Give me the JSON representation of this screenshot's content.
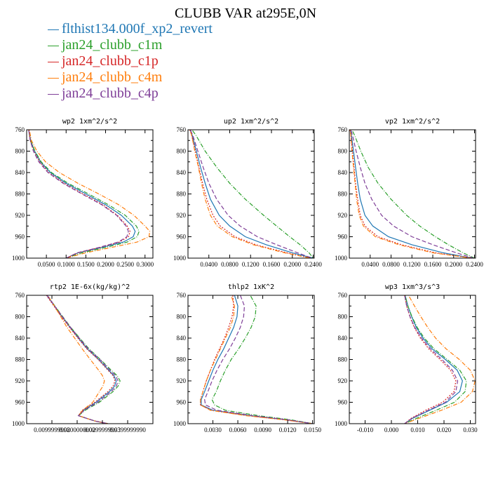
{
  "figure_title": "CLUBB VAR at295E,0N",
  "legend": [
    {
      "label": "flthist134.000f_xp2_revert",
      "color": "#1f77b4"
    },
    {
      "label": "jan24_clubb_c1m",
      "color": "#2ca02c"
    },
    {
      "label": "jan24_clubb_c1p",
      "color": "#d62728"
    },
    {
      "label": "jan24_clubb_c4m",
      "color": "#ff7f0e"
    },
    {
      "label": "jan24_clubb_c4p",
      "color": "#7f3f98"
    }
  ],
  "chart_data": [
    {
      "type": "line",
      "title": "wp2   1xm^2/s^2",
      "xlim": [
        0,
        0.32
      ],
      "ylim": [
        760,
        1000
      ],
      "y_reversed": true,
      "xticks": [
        0.05,
        0.1,
        0.15,
        0.2,
        0.25,
        0.3
      ],
      "xtick_labels": [
        "0.0500",
        "0.1000",
        "0.1500",
        "0.2000",
        "0.2500",
        "0.3000"
      ],
      "yticks": [
        760,
        800,
        840,
        880,
        920,
        960,
        1000
      ],
      "y": [
        750,
        780,
        800,
        820,
        840,
        860,
        880,
        900,
        920,
        940,
        950,
        960,
        970,
        980,
        990,
        1000
      ],
      "series": [
        {
          "name": "flthist134.000f_xp2_revert",
          "color": "#1f77b4",
          "dash": "",
          "values": [
            0.003,
            0.01,
            0.02,
            0.035,
            0.06,
            0.1,
            0.15,
            0.2,
            0.24,
            0.268,
            0.275,
            0.27,
            0.245,
            0.19,
            0.13,
            0.1
          ]
        },
        {
          "name": "jan24_clubb_c1m",
          "color": "#2ca02c",
          "dash": "6,2,1,2",
          "values": [
            0.003,
            0.01,
            0.021,
            0.037,
            0.063,
            0.105,
            0.157,
            0.207,
            0.25,
            0.278,
            0.285,
            0.28,
            0.255,
            0.2,
            0.14,
            0.1
          ]
        },
        {
          "name": "jan24_clubb_c1p",
          "color": "#d62728",
          "dash": "2,2",
          "values": [
            0.003,
            0.009,
            0.018,
            0.033,
            0.056,
            0.095,
            0.143,
            0.193,
            0.23,
            0.255,
            0.262,
            0.258,
            0.235,
            0.185,
            0.13,
            0.1
          ]
        },
        {
          "name": "jan24_clubb_c4m",
          "color": "#ff7f0e",
          "dash": "6,2,1,2",
          "values": [
            0.004,
            0.012,
            0.026,
            0.048,
            0.083,
            0.13,
            0.183,
            0.233,
            0.272,
            0.3,
            0.312,
            0.31,
            0.28,
            0.215,
            0.15,
            0.1
          ]
        },
        {
          "name": "jan24_clubb_c4p",
          "color": "#7f3f98",
          "dash": "6,3",
          "values": [
            0.003,
            0.009,
            0.017,
            0.031,
            0.054,
            0.092,
            0.14,
            0.19,
            0.228,
            0.252,
            0.258,
            0.254,
            0.232,
            0.183,
            0.128,
            0.1
          ]
        }
      ]
    },
    {
      "type": "line",
      "title": "up2   1xm^2/s^2",
      "xlim": [
        0,
        0.242
      ],
      "ylim": [
        760,
        1000
      ],
      "y_reversed": true,
      "xticks": [
        0.04,
        0.08,
        0.12,
        0.16,
        0.2,
        0.24
      ],
      "xtick_labels": [
        "0.0400",
        "0.0800",
        "0.1200",
        "0.1600",
        "0.2000",
        "0.2400"
      ],
      "yticks": [
        760,
        800,
        840,
        880,
        920,
        960,
        1000
      ],
      "y": [
        750,
        770,
        800,
        830,
        860,
        890,
        920,
        940,
        960,
        975,
        990,
        1000
      ],
      "series": [
        {
          "name": "flthist134.000f_xp2_revert",
          "color": "#1f77b4",
          "dash": "",
          "values": [
            0.0,
            0.008,
            0.016,
            0.024,
            0.033,
            0.043,
            0.06,
            0.08,
            0.11,
            0.15,
            0.2,
            0.24
          ]
        },
        {
          "name": "jan24_clubb_c1m",
          "color": "#2ca02c",
          "dash": "6,2,1,2",
          "values": [
            0.0,
            0.015,
            0.033,
            0.055,
            0.08,
            0.11,
            0.145,
            0.17,
            0.195,
            0.215,
            0.232,
            0.24
          ]
        },
        {
          "name": "jan24_clubb_c1p",
          "color": "#d62728",
          "dash": "2,2",
          "values": [
            0.0,
            0.007,
            0.014,
            0.021,
            0.028,
            0.036,
            0.048,
            0.062,
            0.09,
            0.13,
            0.19,
            0.235
          ]
        },
        {
          "name": "jan24_clubb_c4m",
          "color": "#ff7f0e",
          "dash": "6,2,1,2",
          "values": [
            0.0,
            0.007,
            0.013,
            0.02,
            0.026,
            0.033,
            0.043,
            0.056,
            0.085,
            0.125,
            0.185,
            0.235
          ]
        },
        {
          "name": "jan24_clubb_c4p",
          "color": "#7f3f98",
          "dash": "6,3",
          "values": [
            0.0,
            0.009,
            0.019,
            0.029,
            0.04,
            0.055,
            0.077,
            0.1,
            0.133,
            0.17,
            0.21,
            0.238
          ]
        }
      ]
    },
    {
      "type": "line",
      "title": "vp2   1xm^2/s^2",
      "xlim": [
        0,
        0.242
      ],
      "ylim": [
        760,
        1000
      ],
      "y_reversed": true,
      "xticks": [
        0.04,
        0.08,
        0.12,
        0.16,
        0.2,
        0.24
      ],
      "xtick_labels": [
        "0.0400",
        "0.0800",
        "0.1200",
        "0.1600",
        "0.2000",
        "0.2400"
      ],
      "yticks": [
        760,
        800,
        840,
        880,
        920,
        960,
        1000
      ],
      "y": [
        750,
        770,
        800,
        830,
        860,
        890,
        920,
        940,
        960,
        975,
        990,
        1000
      ],
      "series": [
        {
          "name": "flthist134.000f_xp2_revert",
          "color": "#1f77b4",
          "dash": "",
          "values": [
            0.0,
            0.004,
            0.008,
            0.012,
            0.016,
            0.021,
            0.03,
            0.045,
            0.075,
            0.12,
            0.18,
            0.235
          ]
        },
        {
          "name": "jan24_clubb_c1m",
          "color": "#2ca02c",
          "dash": "6,2,1,2",
          "values": [
            0.0,
            0.01,
            0.022,
            0.036,
            0.055,
            0.08,
            0.11,
            0.135,
            0.165,
            0.19,
            0.218,
            0.24
          ]
        },
        {
          "name": "jan24_clubb_c1p",
          "color": "#d62728",
          "dash": "2,2",
          "values": [
            0.0,
            0.003,
            0.006,
            0.009,
            0.012,
            0.016,
            0.021,
            0.03,
            0.055,
            0.1,
            0.165,
            0.235
          ]
        },
        {
          "name": "jan24_clubb_c4m",
          "color": "#ff7f0e",
          "dash": "6,2,1,2",
          "values": [
            0.0,
            0.003,
            0.005,
            0.008,
            0.011,
            0.014,
            0.019,
            0.027,
            0.05,
            0.095,
            0.16,
            0.235
          ]
        },
        {
          "name": "jan24_clubb_c4p",
          "color": "#7f3f98",
          "dash": "6,3",
          "values": [
            0.0,
            0.006,
            0.013,
            0.021,
            0.03,
            0.043,
            0.062,
            0.085,
            0.12,
            0.16,
            0.205,
            0.238
          ]
        }
      ]
    },
    {
      "type": "line",
      "title": "rtp2   1E-6x(kg/kg)^2",
      "xlim": [
        0.0,
        0.05
      ],
      "ylim": [
        760,
        1000
      ],
      "y_reversed": true,
      "xticks": [
        0.01,
        0.02,
        0.03,
        0.04
      ],
      "xtick_labels": [
        "0.0099999998",
        "0.0200000000",
        "0.0299999993",
        "0.0399999990"
      ],
      "yticks": [
        760,
        800,
        840,
        880,
        920,
        960,
        1000
      ],
      "y": [
        750,
        760,
        780,
        800,
        820,
        840,
        860,
        880,
        900,
        910,
        920,
        930,
        940,
        960,
        975,
        985,
        995,
        1000
      ],
      "series": [
        {
          "name": "flthist134.000f_xp2_revert",
          "color": "#1f77b4",
          "dash": "",
          "values": [
            0.0068,
            0.008,
            0.011,
            0.014,
            0.0172,
            0.0205,
            0.024,
            0.0285,
            0.0325,
            0.0345,
            0.0355,
            0.0348,
            0.0328,
            0.0275,
            0.0225,
            0.0205,
            0.027,
            0.0322
          ]
        },
        {
          "name": "jan24_clubb_c1m",
          "color": "#2ca02c",
          "dash": "6,2,1,2",
          "values": [
            0.007,
            0.0082,
            0.0112,
            0.0143,
            0.0175,
            0.021,
            0.0247,
            0.0292,
            0.0335,
            0.0358,
            0.037,
            0.0362,
            0.0342,
            0.0288,
            0.0232,
            0.0205,
            0.027,
            0.0322
          ]
        },
        {
          "name": "jan24_clubb_c1p",
          "color": "#d62728",
          "dash": "2,2",
          "values": [
            0.0066,
            0.0078,
            0.0108,
            0.0138,
            0.017,
            0.0203,
            0.0238,
            0.0283,
            0.0322,
            0.0342,
            0.035,
            0.0342,
            0.0322,
            0.027,
            0.022,
            0.0205,
            0.027,
            0.0322
          ]
        },
        {
          "name": "jan24_clubb_c4m",
          "color": "#ff7f0e",
          "dash": "6,2,1,2",
          "values": [
            0.0071,
            0.0083,
            0.011,
            0.0135,
            0.016,
            0.019,
            0.022,
            0.0252,
            0.0285,
            0.03,
            0.0308,
            0.0302,
            0.0288,
            0.0262,
            0.0222,
            0.0205,
            0.027,
            0.0322
          ]
        },
        {
          "name": "jan24_clubb_c4p",
          "color": "#7f3f98",
          "dash": "6,3",
          "values": [
            0.0069,
            0.0081,
            0.0111,
            0.0142,
            0.0174,
            0.0208,
            0.0244,
            0.029,
            0.033,
            0.0352,
            0.0362,
            0.0355,
            0.0335,
            0.0282,
            0.0228,
            0.0205,
            0.027,
            0.0322
          ]
        }
      ]
    },
    {
      "type": "line",
      "title": "thlp2   1xK^2",
      "xlim": [
        0.0,
        0.0152
      ],
      "ylim": [
        760,
        1000
      ],
      "y_reversed": true,
      "xticks": [
        0.003,
        0.006,
        0.009,
        0.012,
        0.015
      ],
      "xtick_labels": [
        "0.0030",
        "0.0060",
        "0.0090",
        "0.0120",
        "0.0150"
      ],
      "yticks": [
        760,
        800,
        840,
        880,
        920,
        960,
        1000
      ],
      "y": [
        750,
        760,
        780,
        800,
        820,
        840,
        860,
        880,
        900,
        920,
        940,
        955,
        965,
        975,
        985,
        993,
        1000
      ],
      "series": [
        {
          "name": "flthist134.000f_xp2_revert",
          "color": "#1f77b4",
          "dash": "",
          "values": [
            0.0053,
            0.0056,
            0.006,
            0.0059,
            0.0055,
            0.0049,
            0.0043,
            0.0036,
            0.003,
            0.0025,
            0.002,
            0.0016,
            0.0016,
            0.003,
            0.0075,
            0.012,
            0.015
          ]
        },
        {
          "name": "jan24_clubb_c1m",
          "color": "#2ca02c",
          "dash": "6,2,1,2",
          "values": [
            0.007,
            0.0075,
            0.0082,
            0.0081,
            0.0076,
            0.0069,
            0.0061,
            0.0052,
            0.0045,
            0.0039,
            0.0034,
            0.0029,
            0.0032,
            0.0045,
            0.0085,
            0.0125,
            0.015
          ]
        },
        {
          "name": "jan24_clubb_c1p",
          "color": "#d62728",
          "dash": "2,2",
          "values": [
            0.0052,
            0.0054,
            0.0055,
            0.0053,
            0.0049,
            0.0044,
            0.0038,
            0.0032,
            0.0027,
            0.0022,
            0.0018,
            0.0015,
            0.0015,
            0.0028,
            0.0072,
            0.0118,
            0.015
          ]
        },
        {
          "name": "jan24_clubb_c4m",
          "color": "#ff7f0e",
          "dash": "6,2,1,2",
          "values": [
            0.0049,
            0.0052,
            0.0056,
            0.0055,
            0.0051,
            0.0045,
            0.0039,
            0.0033,
            0.0027,
            0.0022,
            0.0018,
            0.0015,
            0.0015,
            0.0027,
            0.007,
            0.0117,
            0.015
          ]
        },
        {
          "name": "jan24_clubb_c4p",
          "color": "#7f3f98",
          "dash": "6,3",
          "values": [
            0.0059,
            0.0063,
            0.0068,
            0.0067,
            0.0063,
            0.0057,
            0.005,
            0.0042,
            0.0035,
            0.0029,
            0.0024,
            0.002,
            0.0021,
            0.0035,
            0.0078,
            0.0122,
            0.015
          ]
        }
      ]
    },
    {
      "type": "line",
      "title": "wp3   1xm^3/s^3",
      "xlim": [
        -0.016,
        0.032
      ],
      "ylim": [
        760,
        1000
      ],
      "y_reversed": true,
      "xticks": [
        -0.01,
        0.0,
        0.01,
        0.02,
        0.03
      ],
      "xtick_labels": [
        "-0.010",
        "0.000",
        "0.010",
        "0.020",
        "0.030"
      ],
      "yticks": [
        760,
        800,
        840,
        880,
        920,
        960,
        1000
      ],
      "y": [
        750,
        760,
        780,
        800,
        820,
        840,
        860,
        880,
        900,
        920,
        940,
        960,
        975,
        990,
        1000
      ],
      "series": [
        {
          "name": "flthist134.000f_xp2_revert",
          "color": "#1f77b4",
          "dash": "",
          "values": [
            0.0048,
            0.0052,
            0.0063,
            0.0077,
            0.0095,
            0.012,
            0.0155,
            0.0205,
            0.025,
            0.027,
            0.026,
            0.021,
            0.0145,
            0.008,
            0.005
          ]
        },
        {
          "name": "jan24_clubb_c1m",
          "color": "#2ca02c",
          "dash": "6,2,1,2",
          "values": [
            0.0048,
            0.0052,
            0.0063,
            0.0078,
            0.0098,
            0.0125,
            0.0162,
            0.0212,
            0.026,
            0.0285,
            0.028,
            0.024,
            0.017,
            0.0095,
            0.005
          ]
        },
        {
          "name": "jan24_clubb_c1p",
          "color": "#d62728",
          "dash": "2,2",
          "values": [
            0.0048,
            0.005,
            0.0058,
            0.007,
            0.0087,
            0.011,
            0.0142,
            0.0185,
            0.0225,
            0.0245,
            0.0238,
            0.0195,
            0.013,
            0.0075,
            0.005
          ]
        },
        {
          "name": "jan24_clubb_c4m",
          "color": "#ff7f0e",
          "dash": "6,2,1,2",
          "values": [
            0.0055,
            0.0065,
            0.0088,
            0.0112,
            0.0138,
            0.0168,
            0.0208,
            0.0258,
            0.03,
            0.0318,
            0.0308,
            0.0265,
            0.019,
            0.0105,
            0.005
          ]
        },
        {
          "name": "jan24_clubb_c4p",
          "color": "#7f3f98",
          "dash": "6,3",
          "values": [
            0.0048,
            0.005,
            0.0058,
            0.0071,
            0.0089,
            0.0114,
            0.0148,
            0.0192,
            0.0232,
            0.0252,
            0.0245,
            0.0205,
            0.014,
            0.0078,
            0.005
          ]
        }
      ]
    }
  ]
}
